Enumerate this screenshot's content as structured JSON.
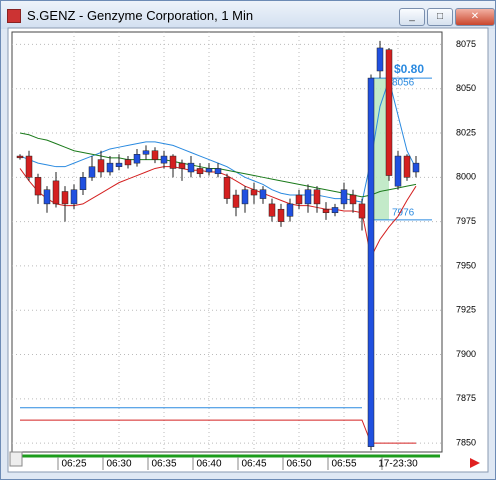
{
  "chart_data": {
    "type": "candlestick",
    "title": "S.GENZ - Genzyme Corporation, 1 Min",
    "categories": [
      null,
      null,
      null,
      null,
      null,
      null,
      "06:25",
      null,
      null,
      null,
      null,
      "06:30",
      null,
      null,
      null,
      null,
      "06:35",
      null,
      null,
      null,
      null,
      "06:40",
      null,
      null,
      null,
      null,
      "06:45",
      null,
      null,
      null,
      null,
      "06:50",
      null,
      null,
      null,
      null,
      "06:55",
      null,
      null,
      null,
      null,
      null,
      "17-23:30",
      null,
      null
    ],
    "open": [
      8012,
      8012,
      8000,
      7985,
      7998,
      7992,
      7985,
      7993,
      8000,
      8010,
      8003,
      8006,
      8010,
      8008,
      8013,
      8015,
      8008,
      8012,
      8008,
      8003,
      8005,
      8003,
      8002,
      8000,
      7990,
      7985,
      7993,
      7988,
      7985,
      7982,
      7978,
      7990,
      7985,
      7993,
      7982,
      7980,
      7985,
      7990,
      7985,
      7848,
      8060,
      8072,
      7995,
      8012,
      8003
    ],
    "high": [
      8013,
      8015,
      8002,
      7995,
      8003,
      7995,
      7996,
      8003,
      8012,
      8015,
      8012,
      8013,
      8012,
      8016,
      8018,
      8017,
      8015,
      8013,
      8010,
      8012,
      8008,
      8008,
      8008,
      8002,
      7993,
      7995,
      7997,
      7995,
      7988,
      7985,
      7988,
      7993,
      7996,
      7995,
      7986,
      7985,
      7997,
      7993,
      7988,
      8058,
      8077,
      8073,
      8015,
      8013,
      8012
    ],
    "low": [
      8010,
      7998,
      7985,
      7980,
      7983,
      7975,
      7982,
      7990,
      7998,
      8000,
      8001,
      8004,
      8005,
      8006,
      8010,
      8008,
      8005,
      8000,
      7998,
      8000,
      8000,
      8001,
      8000,
      7985,
      7978,
      7980,
      7985,
      7985,
      7975,
      7972,
      7975,
      7982,
      7980,
      7980,
      7976,
      7978,
      7982,
      7980,
      7970,
      7846,
      8056,
      7998,
      7993,
      7998,
      8000
    ],
    "close": [
      8011,
      8000,
      7990,
      7993,
      7985,
      7985,
      7993,
      8000,
      8006,
      8003,
      8008,
      8008,
      8007,
      8013,
      8015,
      8010,
      8012,
      8005,
      8005,
      8008,
      8002,
      8005,
      8005,
      7988,
      7983,
      7993,
      7990,
      7993,
      7978,
      7975,
      7985,
      7985,
      7993,
      7985,
      7980,
      7983,
      7993,
      7985,
      7977,
      8056,
      8073,
      8001,
      8012,
      8000,
      8008
    ],
    "up_color": "#2050e0",
    "down_color": "#d42020",
    "series": [
      {
        "color": "#2a8ae0",
        "values": [
          8012,
          8010,
          8008,
          8007,
          8006,
          8006,
          8008,
          8010,
          8012,
          8014,
          8016,
          8017,
          8018,
          8019,
          8020,
          8020,
          8019,
          8018,
          8016,
          8014,
          8012,
          8010,
          8008,
          8006,
          8003,
          8000,
          7998,
          7996,
          7993,
          7991,
          7990,
          7990,
          7990,
          7990,
          7989,
          7988,
          7988,
          7987,
          7986,
          8010,
          8040,
          8055,
          8035,
          8015,
          8005
        ]
      },
      {
        "color": "#1a7a1a",
        "values": [
          8025,
          8024,
          8022,
          8021,
          8019,
          8017,
          8015,
          8014,
          8013,
          8012,
          8011,
          8011,
          8010,
          8010,
          8010,
          8010,
          8010,
          8009,
          8008,
          8007,
          8006,
          8005,
          8005,
          8004,
          8003,
          8002,
          8001,
          8000,
          7999,
          7998,
          7997,
          7996,
          7995,
          7994,
          7993,
          7992,
          7991,
          7990,
          7989,
          7990,
          7992,
          7993,
          7994,
          7995,
          7996
        ]
      },
      {
        "color": "#d42020",
        "values": [
          8005,
          7998,
          7992,
          7988,
          7985,
          7984,
          7984,
          7985,
          7988,
          7991,
          7994,
          7997,
          7999,
          8001,
          8003,
          8005,
          8006,
          8006,
          8005,
          8004,
          8004,
          8003,
          8003,
          8001,
          7998,
          7995,
          7993,
          7991,
          7989,
          7987,
          7985,
          7984,
          7984,
          7983,
          7982,
          7982,
          7981,
          7981,
          7980,
          7955,
          7965,
          7972,
          7978,
          7987,
          7995
        ]
      },
      {
        "color": "#2a8ae0",
        "values": [
          7870,
          7870,
          7870,
          7870,
          7870,
          7870,
          7870,
          7870,
          7870,
          7870,
          7870,
          7870,
          7870,
          7870,
          7870,
          7870,
          7870,
          7870,
          7870,
          7870,
          7870,
          7870,
          7870,
          7870,
          7870,
          7870,
          7870,
          7870,
          7870,
          7870,
          7870,
          7870,
          7870,
          7870,
          7870,
          7870,
          7870,
          7870,
          7870,
          null,
          null,
          null,
          null,
          null,
          null
        ]
      },
      {
        "color": "#d42020",
        "values": [
          7863,
          7863,
          7863,
          7863,
          7863,
          7863,
          7863,
          7863,
          7863,
          7863,
          7863,
          7863,
          7863,
          7863,
          7863,
          7863,
          7863,
          7863,
          7863,
          7863,
          7863,
          7863,
          7863,
          7863,
          7863,
          7863,
          7863,
          7863,
          7863,
          7863,
          7863,
          7863,
          7863,
          7863,
          7863,
          7863,
          7863,
          7863,
          7863,
          7850,
          7850,
          7850,
          7850,
          7850,
          7850
        ]
      }
    ],
    "measure": {
      "high": 8056,
      "low": 7976,
      "change": "$0.80",
      "color": "#b8e6c0"
    },
    "ylim": [
      7845,
      8082
    ],
    "yticks": [
      7850,
      7875,
      7900,
      7925,
      7950,
      7975,
      8000,
      8025,
      8050,
      8075
    ],
    "grid": true
  }
}
